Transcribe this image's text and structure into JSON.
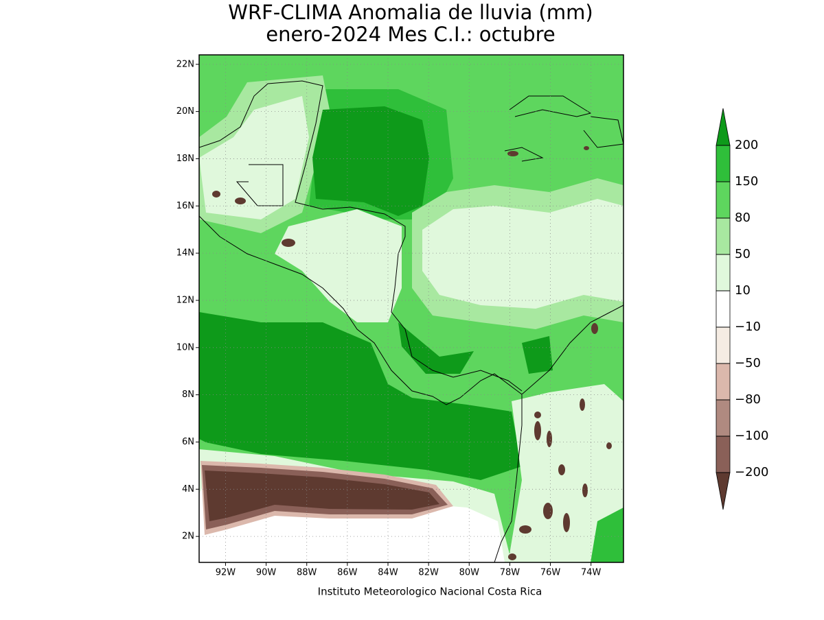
{
  "title": [
    "WRF-CLIMA Anomalia de lluvia (mm)",
    "enero-2024 Mes C.I.: octubre"
  ],
  "map": {
    "lon_range": [
      -93.3,
      -72.4
    ],
    "lat_range": [
      0.9,
      22.4
    ],
    "lat_ticks": [
      {
        "value": 22,
        "label": "22N"
      },
      {
        "value": 20,
        "label": "20N"
      },
      {
        "value": 18,
        "label": "18N"
      },
      {
        "value": 16,
        "label": "16N"
      },
      {
        "value": 14,
        "label": "14N"
      },
      {
        "value": 12,
        "label": "12N"
      },
      {
        "value": 10,
        "label": "10N"
      },
      {
        "value": 8,
        "label": "8N"
      },
      {
        "value": 6,
        "label": "6N"
      },
      {
        "value": 4,
        "label": "4N"
      },
      {
        "value": 2,
        "label": "2N"
      }
    ],
    "lon_ticks": [
      {
        "value": -92,
        "label": "92W"
      },
      {
        "value": -90,
        "label": "90W"
      },
      {
        "value": -88,
        "label": "88W"
      },
      {
        "value": -86,
        "label": "86W"
      },
      {
        "value": -84,
        "label": "84W"
      },
      {
        "value": -82,
        "label": "82W"
      },
      {
        "value": -80,
        "label": "80W"
      },
      {
        "value": -78,
        "label": "78W"
      },
      {
        "value": -76,
        "label": "76W"
      },
      {
        "value": -74,
        "label": "74W"
      }
    ],
    "grid": true
  },
  "colorbar": {
    "levels": [
      200,
      150,
      80,
      50,
      10,
      {
        "value": -10,
        "label": "−10"
      },
      {
        "value": -50,
        "label": "−50"
      },
      {
        "value": -80,
        "label": "−80"
      },
      {
        "value": -100,
        "label": "−100"
      },
      {
        "value": -200,
        "label": "−200"
      }
    ],
    "colors": [
      "#0e9a1a",
      "#2fbf3a",
      "#5ed65e",
      "#a8e8a0",
      "#e0f8dc",
      "#ffffff",
      "#f5ece3",
      "#dbb8ac",
      "#b08a80",
      "#8a6058",
      "#5e3a30"
    ]
  },
  "credit": "Instituto Meteorologico Nacional Costa Rica"
}
